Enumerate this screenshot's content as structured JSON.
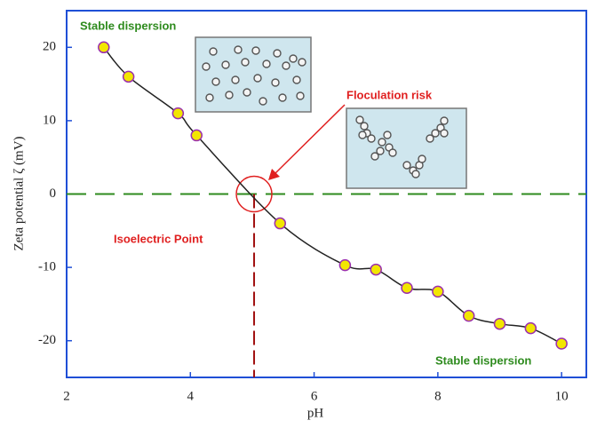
{
  "chart_data": {
    "type": "line",
    "xlabel": "pH",
    "ylabel": "Zeta potential ζ (mV)",
    "x": [
      2.6,
      3.0,
      3.8,
      4.1,
      5.45,
      6.5,
      7.0,
      7.5,
      8.0,
      8.5,
      9.0,
      9.5,
      10.0
    ],
    "values": [
      20,
      16,
      11,
      8,
      -4,
      -9.7,
      -10.3,
      -12.8,
      -13.3,
      -16.6,
      -17.7,
      -18.3,
      -20.4
    ],
    "color": "#222222",
    "marker_fill": "#f2e600",
    "marker_edge": "#9b2fae",
    "xlim": [
      2,
      10.4
    ],
    "xticks": [
      2,
      4,
      6,
      8,
      10
    ],
    "ylim": [
      -25,
      25
    ],
    "yticks": [
      -20,
      -10,
      0,
      10,
      20
    ],
    "zero_line": 0,
    "isoelectric_point": 5.03,
    "annotations": [
      {
        "text": "Stable dispersion",
        "color": "#2e8b1e"
      },
      {
        "text": "Floculation risk",
        "color": "#e02020"
      },
      {
        "text": "Isoelectric Point",
        "color": "#e02020"
      },
      {
        "text": "Stable dispersion",
        "color": "#2e8b1e"
      }
    ]
  }
}
